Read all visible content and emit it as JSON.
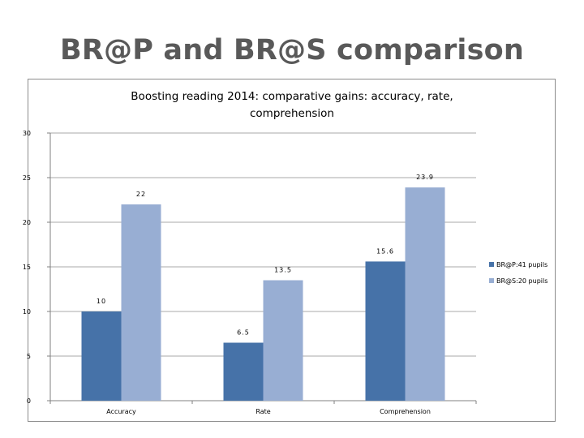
{
  "slide": {
    "title": "BR@P and BR@S comparison"
  },
  "chart_data": {
    "type": "bar",
    "title": "Boosting reading 2014: comparative gains: accuracy, rate, comprehension",
    "title_lines": [
      "Boosting reading 2014: comparative gains: accuracy, rate,",
      "comprehension"
    ],
    "categories": [
      "Accuracy",
      "Rate",
      "Comprehension"
    ],
    "series": [
      {
        "name": "BR@P:41 pupils",
        "values": [
          10,
          6.5,
          15.6
        ],
        "color": "#4672a8"
      },
      {
        "name": "BR@S:20 pupils",
        "values": [
          22,
          13.5,
          23.9
        ],
        "color": "#98aed3"
      }
    ],
    "ylim": [
      0,
      30
    ],
    "yticks": [
      0,
      5,
      10,
      15,
      20,
      25,
      30
    ],
    "grid": true,
    "legend_position": "right",
    "xlabel": "",
    "ylabel": ""
  }
}
